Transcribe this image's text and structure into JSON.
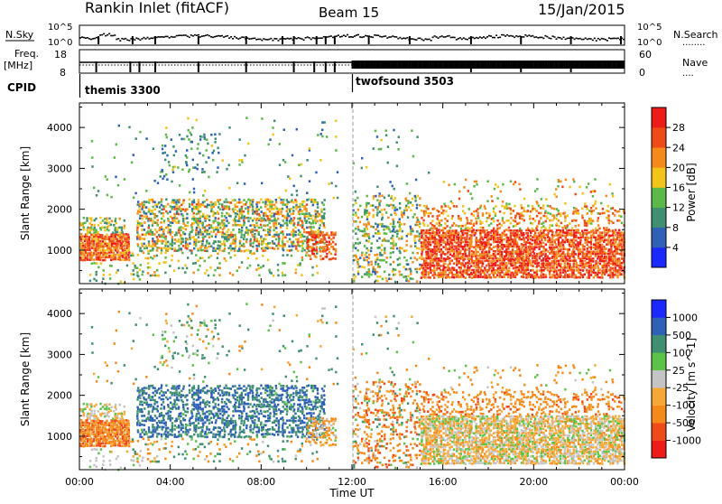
{
  "header": {
    "station": "Rankin Inlet (fitACF)",
    "beam": "Beam 15",
    "date": "15/Jan/2015"
  },
  "strip_labels": {
    "nsky": "N.Sky",
    "nsearch": "N.Search",
    "dots_left": "........",
    "freq": "Freq.",
    "freq_unit": "[MHz]",
    "nave": "Nave",
    "dots_right": "....",
    "cpid": "CPID"
  },
  "strip_ticks": {
    "noise_left_top": "10^5",
    "noise_left_bottom": "10^0",
    "noise_right_top": "10^5",
    "noise_right_bottom": "10^0",
    "freq_left_top": "18",
    "freq_left_bottom": "8",
    "freq_right_top": "60",
    "freq_right_bottom": "0"
  },
  "cpid_segments": [
    {
      "label": "themis 3300",
      "start_hour": 0,
      "end_hour": 12.0
    },
    {
      "label": "twofsound 3503",
      "start_hour": 12.0,
      "end_hour": 24
    }
  ],
  "colors": {
    "power": [
      "#1a2aff",
      "#2f62b6",
      "#3f8f70",
      "#5cb848",
      "#f2c318",
      "#f58a1a",
      "#f04a18",
      "#ee1c18"
    ],
    "velocity": [
      "#ee1c18",
      "#f04a18",
      "#f58a1a",
      "#f5a836",
      "#c4c4c4",
      "#5cc248",
      "#3f8f70",
      "#2f62b6",
      "#1a2aff"
    ]
  },
  "chart_data": [
    {
      "type": "heatmap",
      "name": "power",
      "ylabel": "Slant Range [km]",
      "xlabel": "",
      "x_ticks": [
        "00:00",
        "04:00",
        "08:00",
        "12:00",
        "16:00",
        "20:00",
        "00:00"
      ],
      "y_ticks": [
        "1000",
        "2000",
        "3000",
        "4000"
      ],
      "xlim_hours": [
        0,
        24
      ],
      "ylim_km": [
        180,
        4600
      ],
      "colorbar_title": "Power [dB]",
      "colorbar_ticks": [
        "4",
        "8",
        "12",
        "16",
        "20",
        "24",
        "28"
      ],
      "colorbar_range": [
        0,
        32
      ]
    },
    {
      "type": "heatmap",
      "name": "velocity",
      "ylabel": "Slant Range [km]",
      "xlabel": "Time UT",
      "x_ticks": [
        "00:00",
        "04:00",
        "08:00",
        "12:00",
        "16:00",
        "20:00",
        "00:00"
      ],
      "y_ticks": [
        "1000",
        "2000",
        "3000",
        "4000"
      ],
      "xlim_hours": [
        0,
        24
      ],
      "ylim_km": [
        180,
        4600
      ],
      "colorbar_title": "Velocity [m s^-1]",
      "colorbar_ticks": [
        "-1000",
        "-500",
        "-100",
        "-25",
        "25",
        "100",
        "500",
        "1000"
      ]
    }
  ],
  "scatter_regions": [
    {
      "t0": 0.0,
      "t1": 2.2,
      "r0": 780,
      "r1": 1450,
      "d": 0.95,
      "pw": [
        18,
        30
      ],
      "vel": [
        -700,
        -40
      ]
    },
    {
      "t0": 0.0,
      "t1": 2.0,
      "r0": 1450,
      "r1": 1850,
      "d": 0.55,
      "pw": [
        8,
        22
      ],
      "vel": [
        -80,
        60
      ]
    },
    {
      "t0": 0.4,
      "t1": 2.8,
      "r0": 200,
      "r1": 750,
      "d": 0.18,
      "pw": [
        8,
        20
      ],
      "vel": [
        -40,
        40
      ]
    },
    {
      "t0": 2.5,
      "t1": 10.8,
      "r0": 1000,
      "r1": 2300,
      "d": 0.55,
      "pw": [
        6,
        26
      ],
      "vel": [
        60,
        1000
      ]
    },
    {
      "t0": 2.2,
      "t1": 10.5,
      "r0": 400,
      "r1": 1000,
      "d": 0.14,
      "pw": [
        8,
        22
      ],
      "vel": [
        -300,
        300
      ]
    },
    {
      "t0": 3.5,
      "t1": 6.2,
      "r0": 2700,
      "r1": 3900,
      "d": 0.13,
      "pw": [
        4,
        14
      ],
      "vel": [
        -60,
        200
      ]
    },
    {
      "t0": 0.5,
      "t1": 11.5,
      "r0": 2300,
      "r1": 4300,
      "d": 0.03,
      "pw": [
        4,
        20
      ],
      "vel": [
        -200,
        300
      ]
    },
    {
      "t0": 10.0,
      "t1": 11.3,
      "r0": 800,
      "r1": 1500,
      "d": 0.55,
      "pw": [
        20,
        30
      ],
      "vel": [
        -250,
        60
      ]
    },
    {
      "t0": 12.0,
      "t1": 15.0,
      "r0": 250,
      "r1": 2400,
      "d": 0.33,
      "pw": [
        6,
        24
      ],
      "vel": [
        -700,
        200
      ]
    },
    {
      "t0": 12.0,
      "t1": 15.5,
      "r0": 2400,
      "r1": 4000,
      "d": 0.04,
      "pw": [
        6,
        20
      ],
      "vel": [
        -300,
        300
      ]
    },
    {
      "t0": 15.0,
      "t1": 24.0,
      "r0": 350,
      "r1": 1550,
      "d": 0.85,
      "pw": [
        20,
        32
      ],
      "vel": [
        -120,
        60
      ]
    },
    {
      "t0": 15.0,
      "t1": 24.0,
      "r0": 1550,
      "r1": 2150,
      "d": 0.35,
      "pw": [
        14,
        28
      ],
      "vel": [
        -600,
        -30
      ]
    },
    {
      "t0": 16.0,
      "t1": 23.5,
      "r0": 2150,
      "r1": 2800,
      "d": 0.07,
      "pw": [
        12,
        26
      ],
      "vel": [
        -400,
        100
      ]
    }
  ]
}
